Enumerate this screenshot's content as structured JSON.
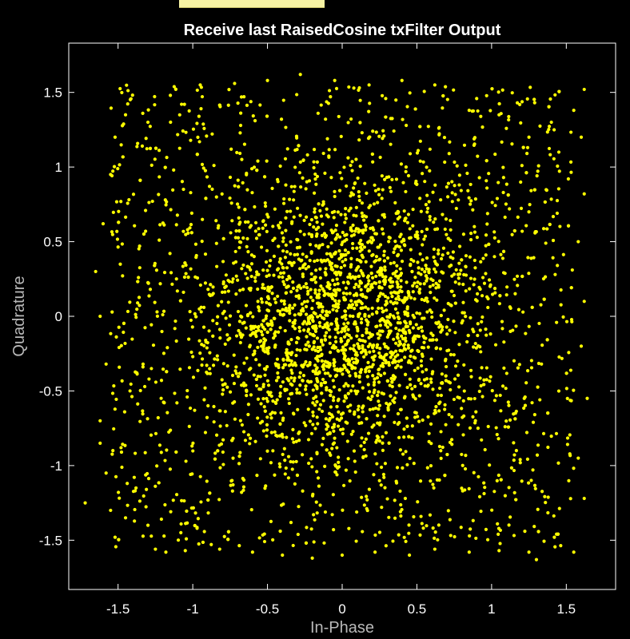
{
  "window": {
    "tab_color": "#f7f3a4"
  },
  "chart_data": {
    "type": "scatter",
    "title": "Receive last RaisedCosine txFilter Output",
    "xlabel": "In-Phase",
    "ylabel": "Quadrature",
    "xlim": [
      -1.83,
      1.83
    ],
    "ylim": [
      -1.83,
      1.83
    ],
    "xticks": [
      -1.5,
      -1,
      -0.5,
      0,
      0.5,
      1,
      1.5
    ],
    "xtick_labels": [
      "-1.5",
      "-1",
      "-0.5",
      "0",
      "0.5",
      "1",
      "1.5"
    ],
    "yticks": [
      -1.5,
      -1,
      -0.5,
      0,
      0.5,
      1,
      1.5
    ],
    "ytick_labels": [
      "-1.5",
      "-1",
      "-0.5",
      "0",
      "0.5",
      "1",
      "1.5"
    ],
    "grid": false,
    "legend": "none",
    "background": "#000000",
    "axis_color": "#ffffff",
    "marker_color": "#ffff00",
    "series": [
      {
        "points": [
          [
            -1.72,
            -1.25
          ],
          [
            -1.62,
            -0.85
          ],
          [
            -1.58,
            -1.05
          ],
          [
            -1.55,
            -1.3
          ],
          [
            -1.52,
            -1.48
          ],
          [
            -1.45,
            -1.35
          ],
          [
            -1.38,
            -1.15
          ],
          [
            -1.3,
            -1.4
          ],
          [
            -1.25,
            -1.56
          ],
          [
            -1.18,
            -1.58
          ],
          [
            -1.05,
            -1.57
          ],
          [
            -0.82,
            -1.56
          ],
          [
            -0.6,
            -1.58
          ],
          [
            -0.4,
            -1.6
          ],
          [
            -0.2,
            -1.62
          ],
          [
            0.0,
            -1.6
          ],
          [
            0.22,
            -1.58
          ],
          [
            0.45,
            -1.6
          ],
          [
            0.62,
            -1.56
          ],
          [
            0.85,
            -1.58
          ],
          [
            1.05,
            -1.57
          ],
          [
            1.25,
            -1.58
          ],
          [
            1.3,
            -1.63
          ],
          [
            1.42,
            -1.48
          ],
          [
            1.55,
            -1.58
          ],
          [
            1.62,
            -1.22
          ],
          [
            1.58,
            -0.95
          ],
          [
            1.64,
            -0.55
          ],
          [
            1.6,
            -0.2
          ],
          [
            1.62,
            0.1
          ],
          [
            1.58,
            0.5
          ],
          [
            1.62,
            0.82
          ],
          [
            1.6,
            1.2
          ],
          [
            1.62,
            1.52
          ],
          [
            1.55,
            1.38
          ],
          [
            1.45,
            1.1
          ],
          [
            1.4,
            1.3
          ],
          [
            1.25,
            1.2
          ],
          [
            1.05,
            1.35
          ],
          [
            0.85,
            1.38
          ],
          [
            0.62,
            1.55
          ],
          [
            0.4,
            1.58
          ],
          [
            0.18,
            1.55
          ],
          [
            -0.05,
            1.58
          ],
          [
            -0.28,
            1.62
          ],
          [
            -0.5,
            1.58
          ],
          [
            -0.72,
            1.56
          ],
          [
            -0.95,
            1.55
          ],
          [
            -1.15,
            1.48
          ],
          [
            -1.3,
            1.3
          ],
          [
            -1.45,
            1.35
          ],
          [
            -1.52,
            1.2
          ],
          [
            -1.55,
            0.95
          ],
          [
            -1.6,
            0.62
          ],
          [
            -1.65,
            0.3
          ],
          [
            -1.62,
            0.0
          ],
          [
            -1.58,
            -0.32
          ],
          [
            -1.62,
            -0.7
          ],
          [
            -1.48,
            -0.88
          ],
          [
            -1.42,
            -0.5
          ]
        ]
      }
    ]
  }
}
